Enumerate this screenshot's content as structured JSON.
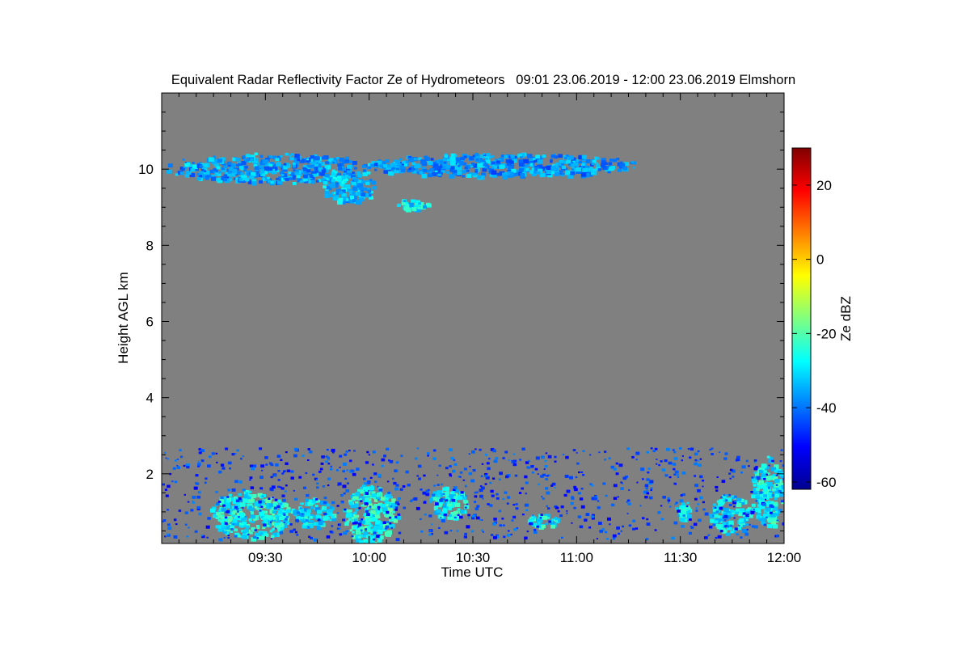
{
  "chart_data": {
    "type": "heatmap",
    "title": "Equivalent Radar Reflectivity Factor Ze of Hydrometeors   09:01 23.06.2019 - 12:00 23.06.2019 Elmshorn",
    "xlabel": "Time UTC",
    "ylabel": "Height AGL km",
    "colorbar_label": "Ze dBZ",
    "xlim_minutes_after_0900": [
      0,
      180
    ],
    "ylim_km": [
      0.17,
      12.0
    ],
    "x_ticks": [
      {
        "label": "09:30",
        "min": 30
      },
      {
        "label": "10:00",
        "min": 60
      },
      {
        "label": "10:30",
        "min": 90
      },
      {
        "label": "11:00",
        "min": 120
      },
      {
        "label": "11:30",
        "min": 150
      },
      {
        "label": "12:00",
        "min": 180
      }
    ],
    "y_ticks": [
      {
        "label": "2",
        "km": 2
      },
      {
        "label": "4",
        "km": 4
      },
      {
        "label": "6",
        "km": 6
      },
      {
        "label": "8",
        "km": 8
      },
      {
        "label": "10",
        "km": 10
      }
    ],
    "colorbar_range_dbz": [
      -62,
      30
    ],
    "colorbar_ticks": [
      {
        "label": "20",
        "v": 20
      },
      {
        "label": "0",
        "v": 0
      },
      {
        "label": "-20",
        "v": -20
      },
      {
        "label": "-40",
        "v": -40
      },
      {
        "label": "-60",
        "v": -60
      }
    ],
    "background_color": "#808080",
    "features": [
      {
        "name": "cirrus-west",
        "t0": 0,
        "t1": 62,
        "h0": 9.65,
        "h1": 10.45,
        "dbz": -36
      },
      {
        "name": "cirrus-fallstreak",
        "t0": 45,
        "t1": 62,
        "h0": 9.1,
        "h1": 9.9,
        "dbz": -33
      },
      {
        "name": "cirrus-east",
        "t0": 56,
        "t1": 140,
        "h0": 9.8,
        "h1": 10.45,
        "dbz": -37
      },
      {
        "name": "cirrus-patch",
        "t0": 67,
        "t1": 77,
        "h0": 8.95,
        "h1": 9.25,
        "dbz": -30
      },
      {
        "name": "low-cloud-0930",
        "t0": 13,
        "t1": 38,
        "h0": 0.3,
        "h1": 1.6,
        "dbz": -27
      },
      {
        "name": "low-cloud-0940",
        "t0": 37,
        "t1": 50,
        "h0": 0.6,
        "h1": 1.4,
        "dbz": -30
      },
      {
        "name": "convective-1000",
        "t0": 52,
        "t1": 68,
        "h0": 0.17,
        "h1": 1.8,
        "dbz": -26
      },
      {
        "name": "low-cloud-1025",
        "t0": 77,
        "t1": 88,
        "h0": 0.8,
        "h1": 1.7,
        "dbz": -28
      },
      {
        "name": "low-cloud-1045",
        "t0": 105,
        "t1": 115,
        "h0": 0.6,
        "h1": 1.0,
        "dbz": -28
      },
      {
        "name": "low-cloud-1132",
        "t0": 148,
        "t1": 153,
        "h0": 0.8,
        "h1": 1.3,
        "dbz": -28
      },
      {
        "name": "low-cloud-1145",
        "t0": 158,
        "t1": 170,
        "h0": 0.4,
        "h1": 1.5,
        "dbz": -30
      },
      {
        "name": "low-cloud-1155",
        "t0": 170,
        "t1": 180,
        "h0": 0.6,
        "h1": 2.5,
        "dbz": -27
      },
      {
        "name": "scattered-echoes",
        "t0": 0,
        "t1": 180,
        "h0": 0.3,
        "h1": 2.7,
        "dbz": -45
      }
    ]
  }
}
